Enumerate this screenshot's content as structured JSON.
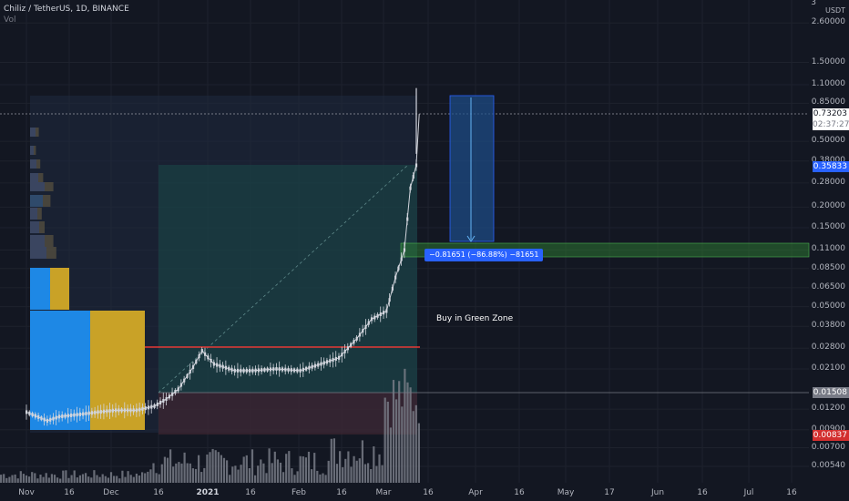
{
  "legend": {
    "title": "Chiliz / TetherUS, 1D, BINANCE",
    "sub": "Vol"
  },
  "axis": {
    "currency": "USDT",
    "ticks": [
      "2.60000",
      "1.50000",
      "1.10000",
      "0.85000",
      "0.50000",
      "0.38000",
      "0.28000",
      "0.20000",
      "0.15000",
      "0.11000",
      "0.08500",
      "0.06500",
      "0.05000",
      "0.03800",
      "0.02800",
      "0.02100",
      "0.01200",
      "0.00900",
      "0.00700",
      "0.00540"
    ],
    "partial_top": "3"
  },
  "x_ticks": [
    {
      "label": "Nov",
      "major": false
    },
    {
      "label": "16",
      "major": false
    },
    {
      "label": "Dec",
      "major": false
    },
    {
      "label": "16",
      "major": false
    },
    {
      "label": "2021",
      "major": true
    },
    {
      "label": "16",
      "major": false
    },
    {
      "label": "Feb",
      "major": false
    },
    {
      "label": "16",
      "major": false
    },
    {
      "label": "Mar",
      "major": false
    },
    {
      "label": "16",
      "major": false
    },
    {
      "label": "Apr",
      "major": false
    },
    {
      "label": "16",
      "major": false
    },
    {
      "label": "May",
      "major": false
    },
    {
      "label": "17",
      "major": false
    },
    {
      "label": "Jun",
      "major": false
    },
    {
      "label": "16",
      "major": false
    },
    {
      "label": "Jul",
      "major": false
    },
    {
      "label": "16",
      "major": false
    }
  ],
  "price_labels": {
    "current": "0.73203",
    "countdown": "02:37:27",
    "level_1": "0.35833",
    "level_2": "0.01508",
    "level_3": "0.00837"
  },
  "measure_label": "−0.81651 (−86.88%) −81651",
  "annotation": "Buy in Green Zone",
  "colors": {
    "background": "#131722",
    "candle": "#d1d4dc",
    "volume": "#787b86",
    "blue_box": "#1e88e5",
    "gold_box": "#c9a227",
    "green_zone": "#2e7d32",
    "red_line": "#e53935",
    "measure": "#2962ff",
    "level_1_bg": "#2962ff",
    "level_2_bg": "#787b86",
    "level_3_bg": "#d32f2f"
  },
  "chart_data": {
    "type": "candlestick",
    "title": "Chiliz / TetherUS, 1D, BINANCE",
    "y_scale": "log",
    "ylim": [
      0.0045,
      3.0
    ],
    "x_range": [
      "2020-11-01",
      "2021-07-25"
    ],
    "close_series": [
      {
        "date": "2020-11-01",
        "price": 0.0115
      },
      {
        "date": "2020-11-08",
        "price": 0.0102
      },
      {
        "date": "2020-11-12",
        "price": 0.0108
      },
      {
        "date": "2020-11-20",
        "price": 0.0112
      },
      {
        "date": "2020-11-25",
        "price": 0.0115
      },
      {
        "date": "2020-12-01",
        "price": 0.0118
      },
      {
        "date": "2020-12-08",
        "price": 0.0118
      },
      {
        "date": "2020-12-14",
        "price": 0.0125
      },
      {
        "date": "2020-12-18",
        "price": 0.0138
      },
      {
        "date": "2020-12-22",
        "price": 0.0158
      },
      {
        "date": "2020-12-27",
        "price": 0.0215
      },
      {
        "date": "2020-12-30",
        "price": 0.027
      },
      {
        "date": "2021-01-03",
        "price": 0.0225
      },
      {
        "date": "2021-01-10",
        "price": 0.0205
      },
      {
        "date": "2021-01-16",
        "price": 0.0205
      },
      {
        "date": "2021-01-24",
        "price": 0.021
      },
      {
        "date": "2021-02-01",
        "price": 0.0205
      },
      {
        "date": "2021-02-08",
        "price": 0.0225
      },
      {
        "date": "2021-02-14",
        "price": 0.0245
      },
      {
        "date": "2021-02-20",
        "price": 0.032
      },
      {
        "date": "2021-02-25",
        "price": 0.042
      },
      {
        "date": "2021-03-02",
        "price": 0.047
      },
      {
        "date": "2021-03-05",
        "price": 0.075
      },
      {
        "date": "2021-03-08",
        "price": 0.11
      },
      {
        "date": "2021-03-10",
        "price": 0.26
      },
      {
        "date": "2021-03-12",
        "price": 0.358
      },
      {
        "date": "2021-03-13",
        "price": 0.732
      }
    ],
    "horizontal_levels": [
      0.35833,
      0.01508,
      0.00837,
      0.028
    ]
  }
}
